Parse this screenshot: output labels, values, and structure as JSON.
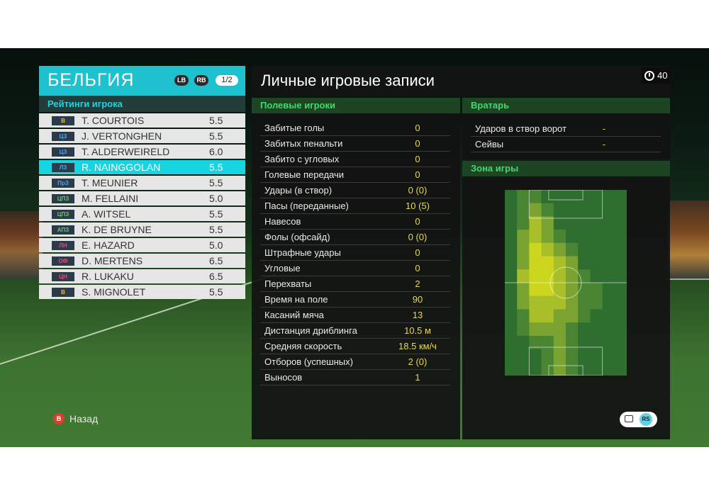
{
  "team": {
    "name": "БЕЛЬГИЯ",
    "lb": "LB",
    "rb": "RB",
    "page": "1/2",
    "ratings_header": "Рейтинги игрока",
    "players": [
      {
        "pos": "В",
        "pos_color": "#f2c21b",
        "name": "T. COURTOIS",
        "rating": "5.5",
        "selected": false
      },
      {
        "pos": "ЦЗ",
        "pos_color": "#4aa8f0",
        "name": "J. VERTONGHEN",
        "rating": "5.5",
        "selected": false
      },
      {
        "pos": "ЦЗ",
        "pos_color": "#4aa8f0",
        "name": "T. ALDERWEIRELD",
        "rating": "6.0",
        "selected": false
      },
      {
        "pos": "ЛЗ",
        "pos_color": "#4aa8f0",
        "name": "R. NAINGGOLAN",
        "rating": "5.5",
        "selected": true
      },
      {
        "pos": "ПрЗ",
        "pos_color": "#4aa8f0",
        "name": "T. MEUNIER",
        "rating": "5.5",
        "selected": false
      },
      {
        "pos": "ЦПЗ",
        "pos_color": "#55d45a",
        "name": "M. FELLAINI",
        "rating": "5.0",
        "selected": false
      },
      {
        "pos": "ЦПЗ",
        "pos_color": "#55d45a",
        "name": "A. WITSEL",
        "rating": "5.5",
        "selected": false
      },
      {
        "pos": "АПЗ",
        "pos_color": "#55d45a",
        "name": "K. DE BRUYNE",
        "rating": "5.5",
        "selected": false
      },
      {
        "pos": "ЛН",
        "pos_color": "#ef4a6a",
        "name": "E. HAZARD",
        "rating": "5.0",
        "selected": false
      },
      {
        "pos": "ОФ",
        "pos_color": "#ef4a6a",
        "name": "D. MERTENS",
        "rating": "6.5",
        "selected": false
      },
      {
        "pos": "ЦН",
        "pos_color": "#ef4a6a",
        "name": "R. LUKAKU",
        "rating": "6.5",
        "selected": false
      },
      {
        "pos": "В",
        "pos_color": "#f2c21b",
        "name": "S. MIGNOLET",
        "rating": "5.5",
        "selected": false
      }
    ]
  },
  "records": {
    "title": "Личные игровые записи",
    "timer": "40",
    "field_header": "Полевые игроки",
    "stats": [
      {
        "label": "Забитые голы",
        "value": "0"
      },
      {
        "label": "Забитых пенальти",
        "value": "0"
      },
      {
        "label": "Забито с угловых",
        "value": "0"
      },
      {
        "label": "Голевые передачи",
        "value": "0"
      },
      {
        "label": "Удары (в створ)",
        "value": "0 (0)"
      },
      {
        "label": "Пасы (переданные)",
        "value": "10 (5)"
      },
      {
        "label": "Навесов",
        "value": "0"
      },
      {
        "label": "Фолы (офсайд)",
        "value": "0 (0)"
      },
      {
        "label": "Штрафные удары",
        "value": "0"
      },
      {
        "label": "Угловые",
        "value": "0"
      },
      {
        "label": "Перехваты",
        "value": "2"
      },
      {
        "label": "Время на поле",
        "value": "90"
      },
      {
        "label": "Касаний мяча",
        "value": "13"
      },
      {
        "label": "Дистанция дриблинга",
        "value": "10.5 м"
      },
      {
        "label": "Средняя скорость",
        "value": "18.5 км/ч"
      },
      {
        "label": "Отборов (успешных)",
        "value": "2 (0)"
      },
      {
        "label": "Выносов",
        "value": "1"
      }
    ],
    "gk_header": "Вратарь",
    "gk_stats": [
      {
        "label": "Ударов в створ ворот",
        "value": "-"
      },
      {
        "label": "Сейвы",
        "value": "-"
      }
    ],
    "zone_header": "Зона игры"
  },
  "footer": {
    "back_key": "B",
    "back_label": "Назад",
    "rs_key": "RS"
  },
  "colors": {
    "accent": "#1ec2cf",
    "section_green": "#45d86e",
    "value_yellow": "#e6d85a"
  }
}
